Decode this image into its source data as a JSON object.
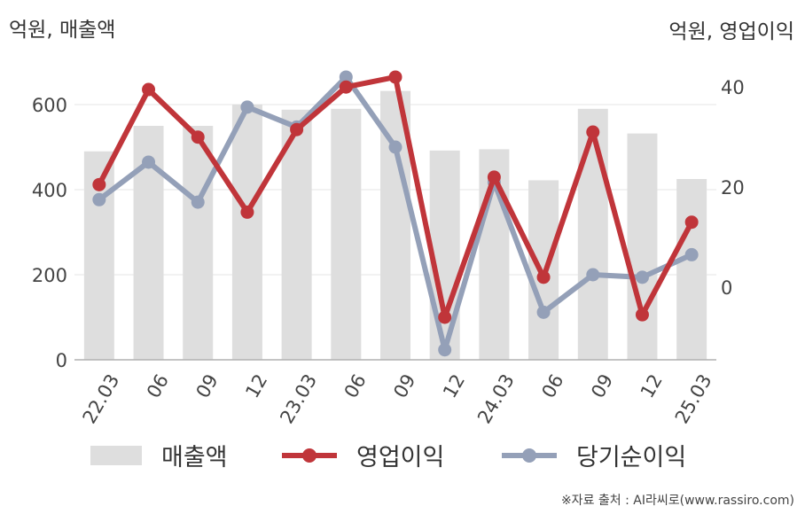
{
  "unit_left": "억원, 매출액",
  "unit_right": "억원, 영업이익",
  "source": "※자료 출처 : AI라씨로(www.rassiro.com)",
  "colors": {
    "revenue": "#dedede",
    "operating": "#c0353a",
    "net": "#94a0b8",
    "grid": "#e6e6e6",
    "axis": "#b0b0b0"
  },
  "chart_data": {
    "type": "bar",
    "categories": [
      "22.03",
      "06",
      "09",
      "12",
      "23.03",
      "06",
      "09",
      "12",
      "24.03",
      "06",
      "09",
      "12",
      "25.03"
    ],
    "y_left": {
      "ticks": [
        0,
        200,
        400,
        600
      ],
      "lim": [
        0,
        700
      ]
    },
    "y_right": {
      "ticks": [
        0,
        20,
        40
      ],
      "lim": [
        -14.5,
        45
      ]
    },
    "legend_position": "bottom",
    "series": [
      {
        "name": "매출액",
        "kind": "bar",
        "axis": "left",
        "values": [
          490,
          550,
          550,
          600,
          588,
          590,
          632,
          492,
          495,
          422,
          590,
          532,
          425
        ]
      },
      {
        "name": "영업이익",
        "kind": "line",
        "axis": "right",
        "values": [
          20.5,
          39.5,
          30,
          15,
          31.5,
          40,
          42,
          -6,
          22,
          2,
          31,
          -5.5,
          13
        ]
      },
      {
        "name": "당기순이익",
        "kind": "line",
        "axis": "right",
        "values": [
          17.5,
          25,
          17,
          36,
          32,
          42,
          28,
          -12.5,
          21,
          -5,
          2.5,
          2,
          6.5
        ]
      }
    ]
  }
}
